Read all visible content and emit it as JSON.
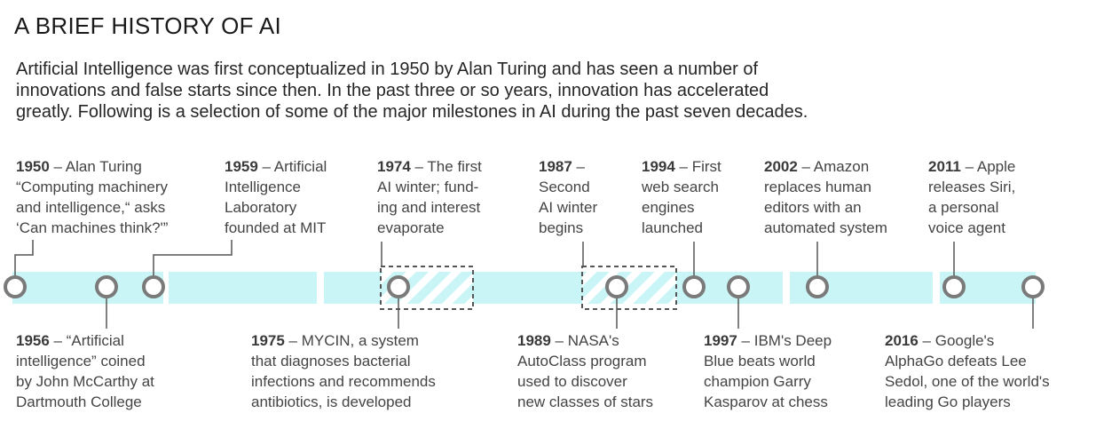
{
  "title": "A BRIEF HISTORY OF AI",
  "intro": [
    "Artificial Intelligence was first conceptualized in 1950 by Alan Turing and has seen a number of",
    "innovations and false starts since then. In the past three or so years, innovation has accelerated",
    "greatly. Following is a selection of some of the major milestones in AI during the past seven decades."
  ],
  "colors": {
    "band": "#c9f5f7",
    "marker": "#7a7a7a",
    "leader": "#555555",
    "hatch": "#ffffff"
  },
  "events_top": [
    {
      "year": "1950",
      "lines": [
        " – Alan Turing",
        "“Computing machinery",
        "and intelligence,“ asks",
        "‘Can machines think?'”"
      ]
    },
    {
      "year": "1959",
      "lines": [
        " – Artificial",
        "Intelligence",
        "Laboratory",
        "founded at MIT"
      ]
    },
    {
      "year": "1974",
      "lines": [
        " – The first",
        "AI winter; fund-",
        "ing and interest",
        "evaporate"
      ]
    },
    {
      "year": "1987",
      "lines": [
        " –",
        "Second",
        "AI winter",
        "begins"
      ]
    },
    {
      "year": "1994",
      "lines": [
        " – First",
        "web search",
        "engines",
        "launched"
      ]
    },
    {
      "year": "2002",
      "lines": [
        " – Amazon",
        "replaces human",
        "editors with an",
        "automated system"
      ]
    },
    {
      "year": "2011",
      "lines": [
        " – Apple",
        "releases Siri,",
        "a personal",
        "voice agent"
      ]
    }
  ],
  "events_bottom": [
    {
      "year": "1956",
      "lines": [
        " – “Artificial",
        "intelligence” coined",
        "by John McCarthy at",
        "Dartmouth College"
      ]
    },
    {
      "year": "1975",
      "lines": [
        " – MYCIN, a system",
        "that diagnoses bacterial",
        "infections and recommends",
        "antibiotics, is developed"
      ]
    },
    {
      "year": "1989",
      "lines": [
        " – NASA's",
        "AutoClass program",
        "used to discover",
        "new classes of stars"
      ]
    },
    {
      "year": "1997",
      "lines": [
        " – IBM's Deep",
        "Blue beats world",
        "champion Garry",
        "Kasparov at chess"
      ]
    },
    {
      "year": "2016",
      "lines": [
        " – Google's",
        "AlphaGo defeats Lee",
        "Sedol, one of the world's",
        "leading Go players"
      ]
    }
  ]
}
